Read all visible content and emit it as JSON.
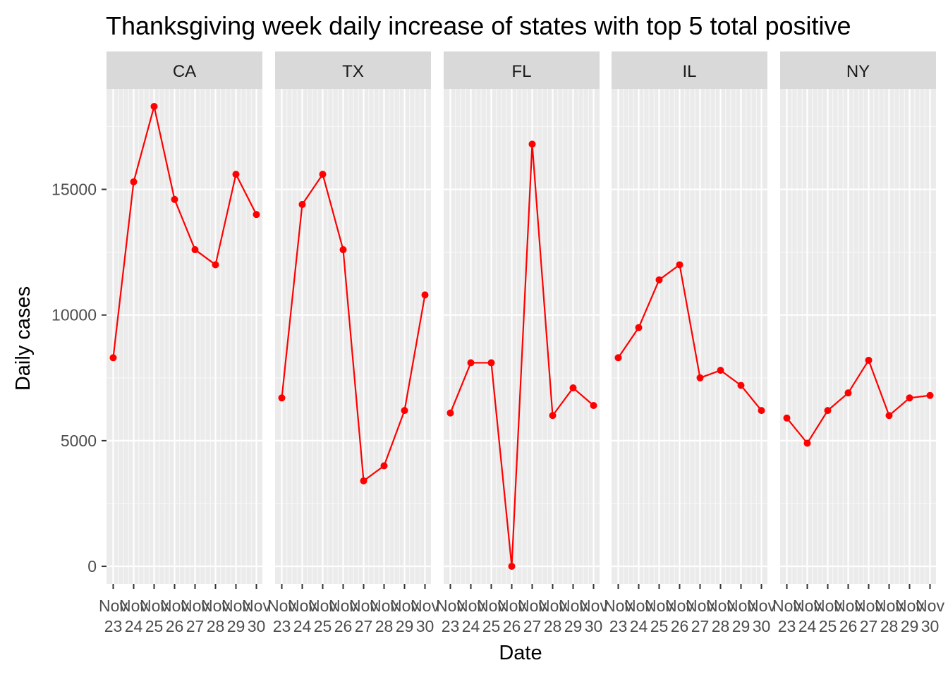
{
  "chart_data": {
    "type": "line",
    "title": "Thanksgiving week daily increase of states with top 5 total positive",
    "xlabel": "Date",
    "ylabel": "Daily cases",
    "ylim": [
      -700,
      19000
    ],
    "yticks": [
      0,
      5000,
      10000,
      15000
    ],
    "ytick_labels": [
      "0",
      "5000",
      "10000",
      "15000"
    ],
    "x": [
      "Nov 23",
      "Nov 24",
      "Nov 25",
      "Nov 26",
      "Nov 27",
      "Nov 28",
      "Nov 29",
      "Nov 30"
    ],
    "xtick_lines": [
      [
        "Nov",
        "23"
      ],
      [
        "Nov",
        "24"
      ],
      [
        "Nov",
        "25"
      ],
      [
        "Nov",
        "26"
      ],
      [
        "Nov",
        "27"
      ],
      [
        "Nov",
        "28"
      ],
      [
        "Nov",
        "29"
      ],
      [
        "Nov",
        "30"
      ]
    ],
    "grid": true,
    "line_color": "#ff0000",
    "panel_background": "#ebebeb",
    "strip_background": "#d9d9d9",
    "facets": [
      {
        "name": "CA",
        "values": [
          8300,
          15300,
          18300,
          14600,
          12600,
          12000,
          15600,
          14000
        ]
      },
      {
        "name": "TX",
        "values": [
          6700,
          14400,
          15600,
          12600,
          3400,
          4000,
          6200,
          10800
        ]
      },
      {
        "name": "FL",
        "values": [
          6100,
          8100,
          8100,
          0,
          16800,
          6000,
          7100,
          6400
        ]
      },
      {
        "name": "IL",
        "values": [
          8300,
          9500,
          11400,
          12000,
          7500,
          7800,
          7200,
          6200
        ]
      },
      {
        "name": "NY",
        "values": [
          5900,
          4900,
          6200,
          6900,
          8200,
          6000,
          6700,
          6800
        ]
      }
    ]
  }
}
